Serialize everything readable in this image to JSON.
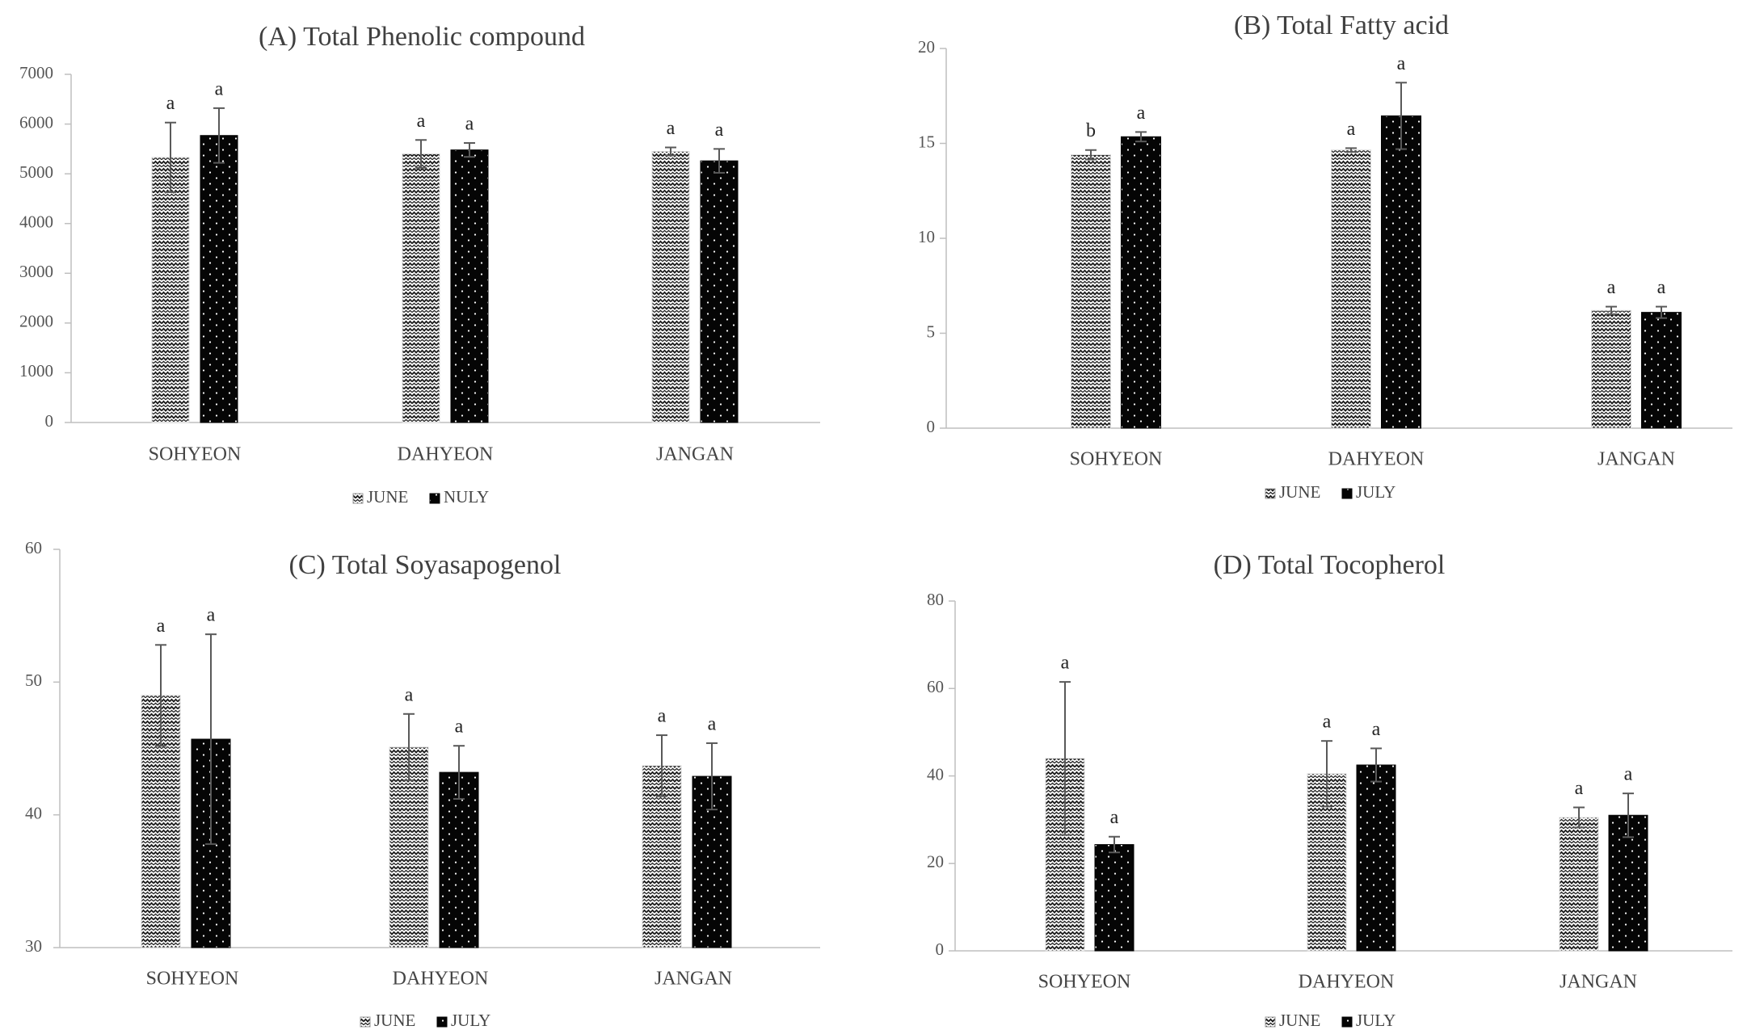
{
  "chart_data": [
    {
      "type": "bar",
      "title": "(A) Total Phenolic compound",
      "categories": [
        "SOHYEON",
        "DAHYEON",
        "JANGAN"
      ],
      "ylim": [
        0,
        7000
      ],
      "yticks": [
        "0",
        "1000",
        "2000",
        "3000",
        "4000",
        "5000",
        "6000",
        "7000"
      ],
      "legend": [
        "JUNE",
        "NULY"
      ],
      "series": [
        {
          "name": "JUNE",
          "values": [
            5330,
            5400,
            5450
          ],
          "errors": [
            700,
            280,
            80
          ],
          "letters": [
            "a",
            "a",
            "a"
          ]
        },
        {
          "name": "NULY",
          "values": [
            5770,
            5480,
            5260
          ],
          "errors": [
            550,
            140,
            240
          ],
          "letters": [
            "a",
            "a",
            "a"
          ]
        }
      ]
    },
    {
      "type": "bar",
      "title": "(B) Total Fatty acid",
      "categories": [
        "SOHYEON",
        "DAHYEON",
        "JANGAN"
      ],
      "ylim": [
        0,
        20
      ],
      "yticks": [
        "0",
        "5",
        "10",
        "15",
        "20"
      ],
      "legend": [
        "JUNE",
        "JULY"
      ],
      "series": [
        {
          "name": "JUNE",
          "values": [
            14.4,
            14.65,
            6.2
          ],
          "errors": [
            0.25,
            0.1,
            0.2
          ],
          "letters": [
            "b",
            "a",
            "a"
          ]
        },
        {
          "name": "JULY",
          "values": [
            15.35,
            16.45,
            6.1
          ],
          "errors": [
            0.25,
            1.75,
            0.3
          ],
          "letters": [
            "a",
            "a",
            "a"
          ]
        }
      ]
    },
    {
      "type": "bar",
      "title": "(C) Total Soyasapogenol",
      "categories": [
        "SOHYEON",
        "DAHYEON",
        "JANGAN"
      ],
      "ylim": [
        30,
        60
      ],
      "yticks": [
        "30",
        "40",
        "50",
        "60"
      ],
      "legend": [
        "JUNE",
        "JULY"
      ],
      "series": [
        {
          "name": "JUNE",
          "values": [
            49.0,
            45.1,
            43.7
          ],
          "errors": [
            3.8,
            2.5,
            2.3
          ],
          "letters": [
            "a",
            "a",
            "a"
          ]
        },
        {
          "name": "JULY",
          "values": [
            45.7,
            43.2,
            42.9
          ],
          "errors": [
            7.9,
            2.0,
            2.5
          ],
          "letters": [
            "a",
            "a",
            "a"
          ]
        }
      ]
    },
    {
      "type": "bar",
      "title": "(D) Total Tocopherol",
      "categories": [
        "SOHYEON",
        "DAHYEON",
        "JANGAN"
      ],
      "ylim": [
        0,
        80
      ],
      "yticks": [
        "0",
        "20",
        "40",
        "60",
        "80"
      ],
      "legend": [
        "JUNE",
        "JULY"
      ],
      "series": [
        {
          "name": "JUNE",
          "values": [
            44.0,
            40.5,
            30.5
          ],
          "errors": [
            17.5,
            7.5,
            2.3
          ],
          "letters": [
            "a",
            "a",
            "a"
          ]
        },
        {
          "name": "JULY",
          "values": [
            24.3,
            42.5,
            31.0
          ],
          "errors": [
            1.8,
            3.8,
            5.0
          ],
          "letters": [
            "a",
            "a",
            "a"
          ]
        }
      ]
    }
  ]
}
